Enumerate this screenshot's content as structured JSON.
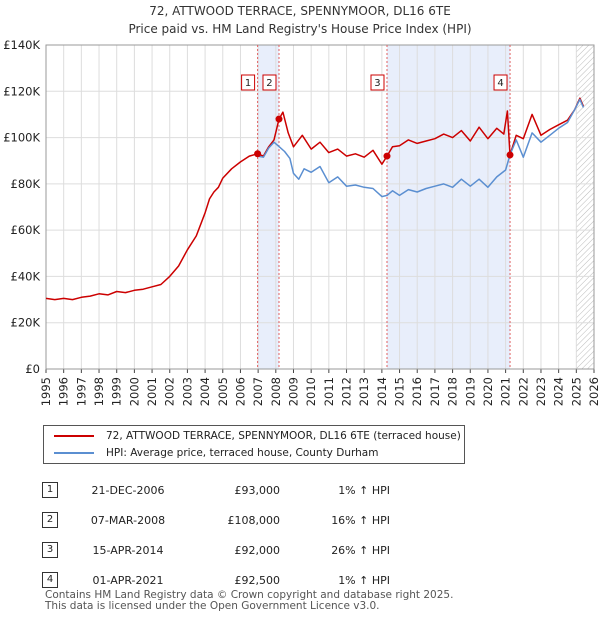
{
  "header": {
    "title": "72, ATTWOOD TERRACE, SPENNYMOOR, DL16 6TE",
    "subtitle": "Price paid vs. HM Land Registry's House Price Index (HPI)"
  },
  "chart_data": {
    "type": "line",
    "title": "72, ATTWOOD TERRACE, SPENNYMOOR, DL16 6TE",
    "subtitle": "Price paid vs. HM Land Registry's House Price Index (HPI)",
    "xlabel": "",
    "ylabel": "",
    "xlim": [
      1995,
      2026
    ],
    "ylim": [
      0,
      140000
    ],
    "y_ticks": [
      {
        "value": 0,
        "label": "£0"
      },
      {
        "value": 20000,
        "label": "£20K"
      },
      {
        "value": 40000,
        "label": "£40K"
      },
      {
        "value": 60000,
        "label": "£60K"
      },
      {
        "value": 80000,
        "label": "£80K"
      },
      {
        "value": 100000,
        "label": "£100K"
      },
      {
        "value": 120000,
        "label": "£120K"
      },
      {
        "value": 140000,
        "label": "£140K"
      }
    ],
    "x_ticks": [
      "1995",
      "1996",
      "1997",
      "1998",
      "1999",
      "2000",
      "2001",
      "2002",
      "2003",
      "2004",
      "2005",
      "2006",
      "2007",
      "2008",
      "2009",
      "2010",
      "2011",
      "2012",
      "2013",
      "2014",
      "2015",
      "2016",
      "2017",
      "2018",
      "2019",
      "2020",
      "2021",
      "2022",
      "2023",
      "2024",
      "2025",
      "2026"
    ],
    "grid": true,
    "shaded_regions": [
      [
        2006.97,
        2008.18
      ],
      [
        2014.29,
        2021.25
      ]
    ],
    "future_hatch_from": 2025.0,
    "series": [
      {
        "name": "72, ATTWOOD TERRACE, SPENNYMOOR, DL16 6TE (terraced house)",
        "color": "#cc0000",
        "x": [
          1995.0,
          1995.5,
          1996.0,
          1996.5,
          1997.0,
          1997.5,
          1998.0,
          1998.5,
          1999.0,
          1999.5,
          2000.0,
          2000.5,
          2001.0,
          2001.5,
          2002.0,
          2002.5,
          2003.0,
          2003.5,
          2004.0,
          2004.25,
          2004.5,
          2004.75,
          2005.0,
          2005.5,
          2006.0,
          2006.5,
          2006.97,
          2007.3,
          2007.6,
          2007.9,
          2008.18,
          2008.4,
          2008.7,
          2009.0,
          2009.5,
          2010.0,
          2010.5,
          2011.0,
          2011.5,
          2012.0,
          2012.5,
          2013.0,
          2013.5,
          2014.0,
          2014.29,
          2014.6,
          2015.0,
          2015.5,
          2016.0,
          2016.5,
          2017.0,
          2017.5,
          2018.0,
          2018.5,
          2019.0,
          2019.5,
          2020.0,
          2020.5,
          2020.9,
          2021.1,
          2021.25,
          2021.6,
          2022.0,
          2022.5,
          2023.0,
          2023.5,
          2024.0,
          2024.5,
          2024.9,
          2025.2,
          2025.4
        ],
        "y": [
          30500,
          30000,
          30500,
          30000,
          31000,
          31500,
          32500,
          32000,
          33500,
          33000,
          34000,
          34500,
          35500,
          36500,
          40000,
          44500,
          51500,
          57500,
          67500,
          73500,
          76500,
          78500,
          82500,
          86500,
          89500,
          92000,
          93000,
          92000,
          96000,
          99000,
          108000,
          111000,
          102000,
          96000,
          101000,
          95000,
          98000,
          93500,
          95000,
          92000,
          93000,
          91500,
          94500,
          88500,
          92000,
          96000,
          96500,
          99000,
          97500,
          98500,
          99500,
          101500,
          100000,
          103000,
          98500,
          104500,
          99500,
          104000,
          101500,
          111500,
          92500,
          101000,
          99500,
          110000,
          101000,
          103500,
          105500,
          107500,
          112000,
          117000,
          113500
        ]
      },
      {
        "name": "HPI: Average price, terraced house, County Durham",
        "color": "#5b8fd1",
        "x": [
          2006.97,
          2007.3,
          2007.6,
          2007.9,
          2008.2,
          2008.5,
          2008.8,
          2009.0,
          2009.3,
          2009.6,
          2010.0,
          2010.5,
          2011.0,
          2011.5,
          2012.0,
          2012.5,
          2013.0,
          2013.5,
          2014.0,
          2014.29,
          2014.6,
          2015.0,
          2015.5,
          2016.0,
          2016.5,
          2017.0,
          2017.5,
          2018.0,
          2018.5,
          2019.0,
          2019.5,
          2020.0,
          2020.5,
          2021.0,
          2021.25,
          2021.6,
          2022.0,
          2022.5,
          2023.0,
          2023.5,
          2024.0,
          2024.5,
          2024.9,
          2025.2,
          2025.4
        ],
        "y": [
          92000,
          91500,
          95500,
          98000,
          96000,
          94000,
          91000,
          84500,
          82000,
          86500,
          85000,
          87500,
          80500,
          83000,
          79000,
          79500,
          78500,
          78000,
          74500,
          75000,
          77000,
          75000,
          77500,
          76500,
          78000,
          79000,
          80000,
          78500,
          82000,
          79000,
          82000,
          78500,
          83000,
          86000,
          92500,
          99000,
          91500,
          102000,
          98000,
          101000,
          104000,
          106500,
          112000,
          116500,
          113000
        ]
      }
    ],
    "transactions": [
      {
        "id": "1",
        "x": 2006.97,
        "y": 93000,
        "date": "21-DEC-2006",
        "price": "£93,000",
        "hpi": "1% ↑ HPI"
      },
      {
        "id": "2",
        "x": 2008.18,
        "y": 108000,
        "date": "07-MAR-2008",
        "price": "£108,000",
        "hpi": "16% ↑ HPI"
      },
      {
        "id": "3",
        "x": 2014.29,
        "y": 92000,
        "date": "15-APR-2014",
        "price": "£92,000",
        "hpi": "26% ↑ HPI"
      },
      {
        "id": "4",
        "x": 2021.25,
        "y": 92500,
        "date": "01-APR-2021",
        "price": "£92,500",
        "hpi": "1% ↑ HPI"
      }
    ]
  },
  "legend": {
    "property_label": "72, ATTWOOD TERRACE, SPENNYMOOR, DL16 6TE (terraced house)",
    "hpi_label": "HPI: Average price, terraced house, County Durham",
    "property_color": "#cc0000",
    "hpi_color": "#5b8fd1"
  },
  "footer": {
    "line1": "Contains HM Land Registry data © Crown copyright and database right 2025.",
    "line2": "This data is licensed under the Open Government Licence v3.0."
  }
}
